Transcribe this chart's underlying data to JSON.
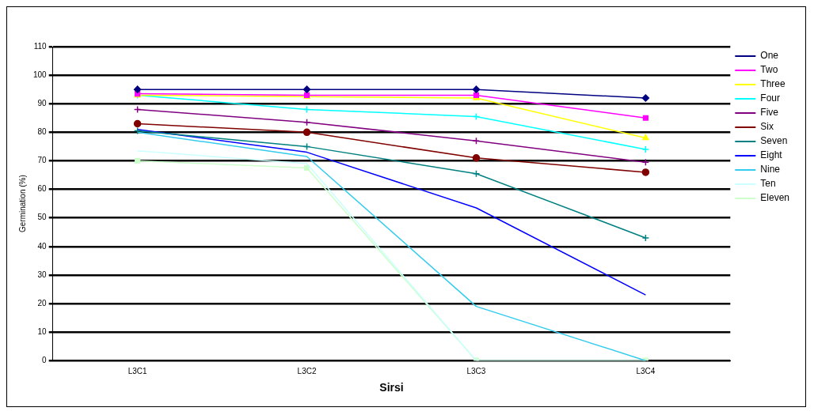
{
  "chart_data": {
    "type": "line",
    "xlabel": "Sirsi",
    "ylabel": "Germination (%)",
    "categories": [
      "L3C1",
      "L3C2",
      "L3C3",
      "L3C4"
    ],
    "ylim": [
      0,
      110
    ],
    "yticks": [
      0,
      10,
      20,
      30,
      40,
      50,
      60,
      70,
      80,
      90,
      100,
      110
    ],
    "grid": "y",
    "legend": "right",
    "line_style": "solid",
    "series": [
      {
        "name": "One",
        "color": "#000080",
        "marker": "diamond",
        "values": [
          95,
          95,
          95,
          92
        ]
      },
      {
        "name": "Two",
        "color": "#ff00ff",
        "marker": "square",
        "values": [
          93.5,
          93,
          93,
          85
        ]
      },
      {
        "name": "Three",
        "color": "#ffff00",
        "marker": "triangle",
        "values": [
          93,
          92.5,
          92,
          78
        ]
      },
      {
        "name": "Four",
        "color": "#00ffff",
        "marker": "cross",
        "values": [
          93,
          88,
          85.5,
          74
        ]
      },
      {
        "name": "Five",
        "color": "#800080",
        "marker": "cross",
        "values": [
          88,
          83.5,
          77,
          69.5
        ]
      },
      {
        "name": "Six",
        "color": "#800000",
        "marker": "circle",
        "values": [
          83,
          80,
          71,
          66
        ]
      },
      {
        "name": "Seven",
        "color": "#008080",
        "marker": "cross",
        "values": [
          80.5,
          75,
          65.5,
          43
        ]
      },
      {
        "name": "Eight",
        "color": "#0000ff",
        "marker": "none",
        "values": [
          81,
          73,
          53.5,
          23
        ]
      },
      {
        "name": "Nine",
        "color": "#33ccee",
        "marker": "none",
        "values": [
          80,
          71.5,
          19,
          0
        ]
      },
      {
        "name": "Ten",
        "color": "#ccffff",
        "marker": "none",
        "values": [
          73.5,
          69,
          0,
          0
        ]
      },
      {
        "name": "Eleven",
        "color": "#ccffcc",
        "marker": "square",
        "values": [
          70,
          67.5,
          0,
          0
        ]
      }
    ]
  }
}
